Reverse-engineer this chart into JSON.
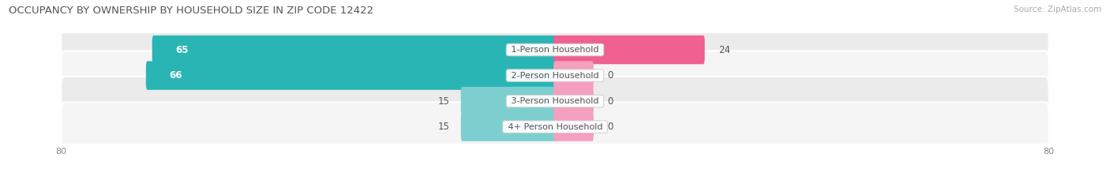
{
  "title": "OCCUPANCY BY OWNERSHIP BY HOUSEHOLD SIZE IN ZIP CODE 12422",
  "source": "Source: ZipAtlas.com",
  "categories": [
    "1-Person Household",
    "2-Person Household",
    "3-Person Household",
    "4+ Person Household"
  ],
  "owner_values": [
    65,
    66,
    15,
    15
  ],
  "renter_values": [
    24,
    0,
    0,
    0
  ],
  "owner_colors": [
    "#2ab5b5",
    "#2ab5b5",
    "#7dcfcf",
    "#7dcfcf"
  ],
  "renter_colors": [
    "#f06090",
    "#f4a0be",
    "#f4a0be",
    "#f4a0be"
  ],
  "row_bg_color": "#ebebeb",
  "row_bg_color_alt": "#f5f5f5",
  "x_max": 80,
  "legend_owner_color": "#2ab5b5",
  "legend_renter_color": "#f06090",
  "label_fontsize": 8.5,
  "title_fontsize": 9.5,
  "source_fontsize": 7.5,
  "axis_tick_fontsize": 8,
  "figsize": [
    14.06,
    2.33
  ],
  "dpi": 100
}
